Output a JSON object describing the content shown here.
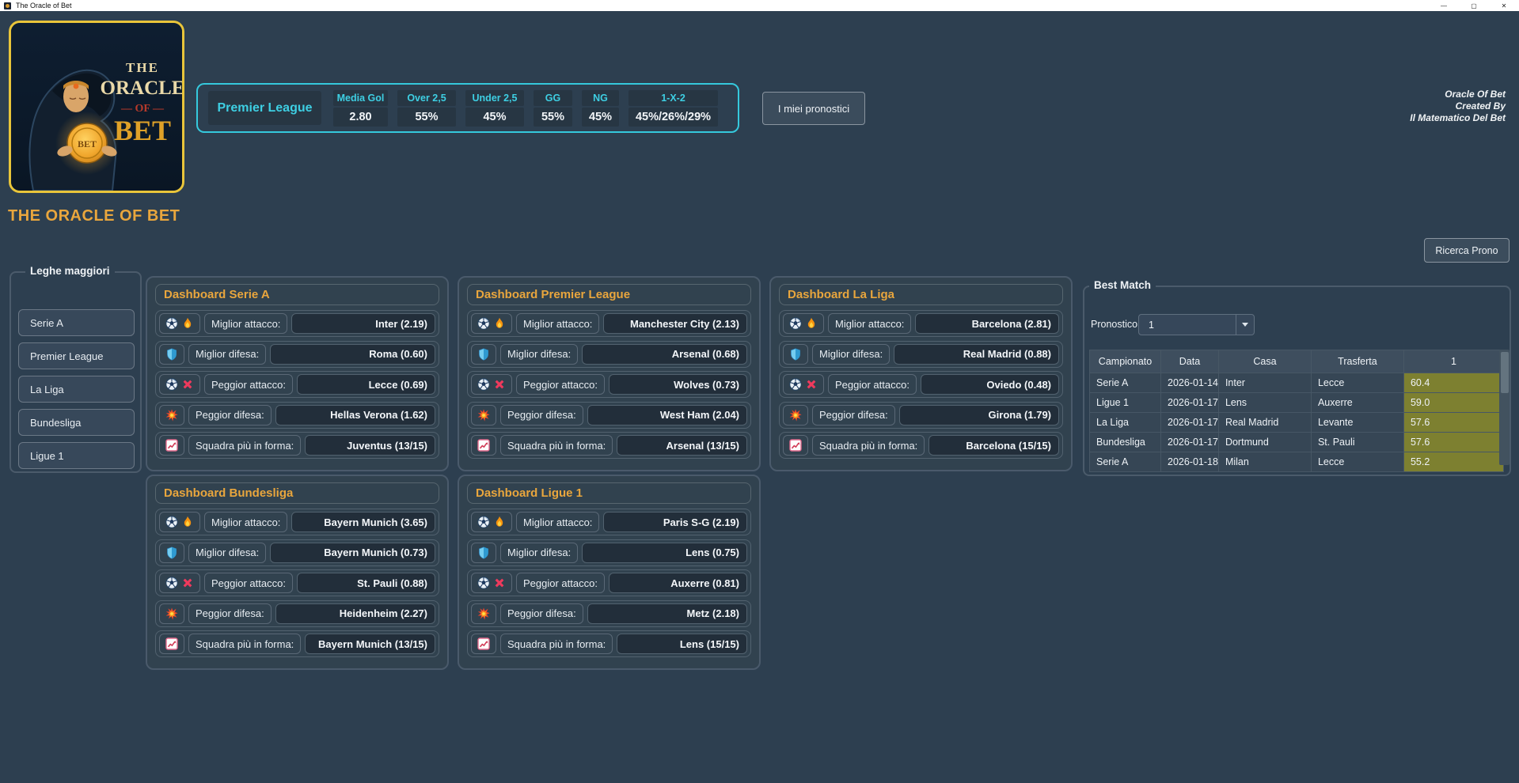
{
  "window": {
    "title": "The Oracle of Bet",
    "controls": {
      "minimize": "—",
      "maximize": "▢",
      "close": "✕"
    }
  },
  "branding": {
    "logo": {
      "line1": "THE",
      "line2": "ORACLE",
      "line3": "OF",
      "line4": "BET",
      "coin_text": "BET"
    },
    "app_title": "THE ORACLE OF BET",
    "credits": [
      "Oracle Of Bet",
      "Created By",
      "Il Matematico Del Bet"
    ]
  },
  "stats_bar": {
    "league": "Premier League",
    "stats": [
      {
        "label": "Media Gol",
        "value": "2.80"
      },
      {
        "label": "Over 2,5",
        "value": "55%"
      },
      {
        "label": "Under 2,5",
        "value": "45%"
      },
      {
        "label": "GG",
        "value": "55%"
      },
      {
        "label": "NG",
        "value": "45%"
      },
      {
        "label": "1-X-2",
        "value": "45%/26%/29%"
      }
    ]
  },
  "buttons": {
    "my_predictions": "I miei pronostici",
    "search_prono": "Ricerca Prono"
  },
  "sidebar": {
    "title": "Leghe maggiori",
    "items": [
      "Serie A",
      "Premier League",
      "La Liga",
      "Bundesliga",
      "Ligue 1"
    ]
  },
  "dashboards": [
    {
      "title": "Dashboard Serie A",
      "rows": [
        {
          "icons": [
            "soccer-ball-icon",
            "flame-icon"
          ],
          "label": "Miglior attacco:",
          "value": "Inter (2.19)"
        },
        {
          "icons": [
            "shield-icon"
          ],
          "label": "Miglior difesa:",
          "value": "Roma (0.60)"
        },
        {
          "icons": [
            "soccer-ball-icon",
            "cross-mark-icon"
          ],
          "label": "Peggior attacco:",
          "value": "Lecce (0.69)"
        },
        {
          "icons": [
            "collision-icon"
          ],
          "label": "Peggior difesa:",
          "value": "Hellas Verona (1.62)"
        },
        {
          "icons": [
            "chart-increasing-icon"
          ],
          "label": "Squadra più in forma:",
          "value": "Juventus (13/15)"
        }
      ]
    },
    {
      "title": "Dashboard Premier League",
      "rows": [
        {
          "icons": [
            "soccer-ball-icon",
            "flame-icon"
          ],
          "label": "Miglior attacco:",
          "value": "Manchester City (2.13)"
        },
        {
          "icons": [
            "shield-icon"
          ],
          "label": "Miglior difesa:",
          "value": "Arsenal (0.68)"
        },
        {
          "icons": [
            "soccer-ball-icon",
            "cross-mark-icon"
          ],
          "label": "Peggior attacco:",
          "value": "Wolves (0.73)"
        },
        {
          "icons": [
            "collision-icon"
          ],
          "label": "Peggior difesa:",
          "value": "West Ham (2.04)"
        },
        {
          "icons": [
            "chart-increasing-icon"
          ],
          "label": "Squadra più in forma:",
          "value": "Arsenal (13/15)"
        }
      ]
    },
    {
      "title": "Dashboard La Liga",
      "rows": [
        {
          "icons": [
            "soccer-ball-icon",
            "flame-icon"
          ],
          "label": "Miglior attacco:",
          "value": "Barcelona (2.81)"
        },
        {
          "icons": [
            "shield-icon"
          ],
          "label": "Miglior difesa:",
          "value": "Real Madrid (0.88)"
        },
        {
          "icons": [
            "soccer-ball-icon",
            "cross-mark-icon"
          ],
          "label": "Peggior attacco:",
          "value": "Oviedo (0.48)"
        },
        {
          "icons": [
            "collision-icon"
          ],
          "label": "Peggior difesa:",
          "value": "Girona (1.79)"
        },
        {
          "icons": [
            "chart-increasing-icon"
          ],
          "label": "Squadra più in forma:",
          "value": "Barcelona (15/15)"
        }
      ]
    },
    {
      "title": "Dashboard Bundesliga",
      "rows": [
        {
          "icons": [
            "soccer-ball-icon",
            "flame-icon"
          ],
          "label": "Miglior attacco:",
          "value": "Bayern Munich (3.65)"
        },
        {
          "icons": [
            "shield-icon"
          ],
          "label": "Miglior difesa:",
          "value": "Bayern Munich (0.73)"
        },
        {
          "icons": [
            "soccer-ball-icon",
            "cross-mark-icon"
          ],
          "label": "Peggior attacco:",
          "value": "St. Pauli (0.88)"
        },
        {
          "icons": [
            "collision-icon"
          ],
          "label": "Peggior difesa:",
          "value": "Heidenheim (2.27)"
        },
        {
          "icons": [
            "chart-increasing-icon"
          ],
          "label": "Squadra più in forma:",
          "value": "Bayern Munich (13/15)"
        }
      ]
    },
    {
      "title": "Dashboard Ligue 1",
      "rows": [
        {
          "icons": [
            "soccer-ball-icon",
            "flame-icon"
          ],
          "label": "Miglior attacco:",
          "value": "Paris S-G (2.19)"
        },
        {
          "icons": [
            "shield-icon"
          ],
          "label": "Miglior difesa:",
          "value": "Lens (0.75)"
        },
        {
          "icons": [
            "soccer-ball-icon",
            "cross-mark-icon"
          ],
          "label": "Peggior attacco:",
          "value": "Auxerre (0.81)"
        },
        {
          "icons": [
            "collision-icon"
          ],
          "label": "Peggior difesa:",
          "value": "Metz (2.18)"
        },
        {
          "icons": [
            "chart-increasing-icon"
          ],
          "label": "Squadra più in forma:",
          "value": "Lens (15/15)"
        }
      ]
    }
  ],
  "best_match": {
    "title": "Best Match",
    "pronostico_label": "Pronostico:",
    "pronostico_value": "1",
    "table": {
      "columns": [
        "Campionato",
        "Data",
        "Casa",
        "Trasferta",
        "1"
      ],
      "rows": [
        [
          "Serie A",
          "2026-01-14",
          "Inter",
          "Lecce",
          "60.4"
        ],
        [
          "Ligue 1",
          "2026-01-17",
          "Lens",
          "Auxerre",
          "59.0"
        ],
        [
          "La Liga",
          "2026-01-17",
          "Real Madrid",
          "Levante",
          "57.6"
        ],
        [
          "Bundesliga",
          "2026-01-17",
          "Dortmund",
          "St. Pauli",
          "57.6"
        ],
        [
          "Serie A",
          "2026-01-18",
          "Milan",
          "Lecce",
          "55.2"
        ]
      ]
    }
  },
  "colors": {
    "background": "#2d3f50",
    "accent_cyan": "#35c9dd",
    "accent_gold": "#e9a63d",
    "odds_highlight": "#7d8030",
    "logo_border": "#e9c53a"
  }
}
